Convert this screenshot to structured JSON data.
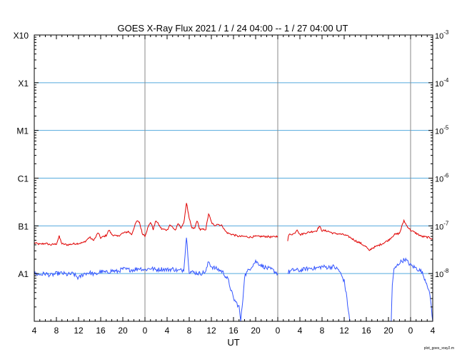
{
  "chart_data": {
    "type": "line",
    "title": "GOES X-Ray Flux   2021 /  1 / 24   04:00 --  1 / 27   04:00   UT",
    "xlabel": "UT",
    "footer": "plot_goes_xray2.m",
    "x_unit": "hours since 2021-01-24 04:00 UT",
    "xlim": [
      0,
      72
    ],
    "ylim": [
      1e-09,
      0.001
    ],
    "y_scale": "log",
    "x_tick_labels": [
      "4",
      "8",
      "12",
      "16",
      "20",
      "0",
      "4",
      "8",
      "12",
      "16",
      "20",
      "0",
      "4",
      "8",
      "12",
      "16",
      "20",
      "0",
      "4"
    ],
    "x_tick_values": [
      0,
      4,
      8,
      12,
      16,
      20,
      24,
      28,
      32,
      36,
      40,
      44,
      48,
      52,
      56,
      60,
      64,
      68,
      72
    ],
    "day_boundaries": [
      20,
      44,
      68
    ],
    "left_axis_labels": [
      {
        "label": "X10",
        "value": 0.001
      },
      {
        "label": "X1",
        "value": 0.0001
      },
      {
        "label": "M1",
        "value": 1e-05
      },
      {
        "label": "C1",
        "value": 1e-06
      },
      {
        "label": "B1",
        "value": 1e-07
      },
      {
        "label": "A1",
        "value": 1e-08
      }
    ],
    "right_axis_labels": [
      {
        "label": "10",
        "exp": "-3",
        "value": 0.001
      },
      {
        "label": "10",
        "exp": "-4",
        "value": 0.0001
      },
      {
        "label": "10",
        "exp": "-5",
        "value": 1e-05
      },
      {
        "label": "10",
        "exp": "-6",
        "value": 1e-06
      },
      {
        "label": "10",
        "exp": "-7",
        "value": 1e-07
      },
      {
        "label": "10",
        "exp": "-8",
        "value": 1e-08
      }
    ],
    "gridlines": [
      0.0001,
      1e-05,
      1e-06,
      1e-07,
      1e-08
    ],
    "colors": {
      "long": "#e00000",
      "short": "#3355ff",
      "grid": "#55aadd",
      "day_line": "#888888"
    },
    "series": [
      {
        "name": "long",
        "segments": [
          [
            [
              0,
              4.4e-08
            ],
            [
              1,
              4.1e-08
            ],
            [
              2,
              4.3e-08
            ],
            [
              3,
              4e-08
            ],
            [
              4,
              4.2e-08
            ],
            [
              4.5,
              6e-08
            ],
            [
              5,
              4.2e-08
            ],
            [
              6,
              4e-08
            ],
            [
              7,
              4.2e-08
            ],
            [
              8,
              4.3e-08
            ],
            [
              9,
              4.5e-08
            ],
            [
              10,
              5.8e-08
            ],
            [
              10.6,
              5e-08
            ],
            [
              11,
              5.5e-08
            ],
            [
              11.5,
              7.2e-08
            ],
            [
              12,
              5.6e-08
            ],
            [
              13,
              6.3e-08
            ],
            [
              13.5,
              8.2e-08
            ],
            [
              14,
              6.6e-08
            ],
            [
              15,
              6e-08
            ],
            [
              16,
              7e-08
            ],
            [
              17,
              7.6e-08
            ],
            [
              17.6,
              6.6e-08
            ],
            [
              18,
              9e-08
            ],
            [
              18.5,
              1.25e-07
            ],
            [
              19,
              1.2e-07
            ],
            [
              19.5,
              7e-08
            ],
            [
              20,
              6.2e-08
            ],
            [
              20.6,
              9.6e-08
            ],
            [
              21,
              1.2e-07
            ],
            [
              21.5,
              8.5e-08
            ],
            [
              22,
              1.3e-07
            ],
            [
              22.5,
              1.05e-07
            ],
            [
              23,
              8.6e-08
            ],
            [
              24,
              8.2e-08
            ],
            [
              24.5,
              1.05e-07
            ],
            [
              25,
              9.3e-08
            ],
            [
              25.5,
              8.1e-08
            ],
            [
              26,
              1.1e-07
            ],
            [
              26.5,
              9.3e-08
            ],
            [
              27,
              1.1e-07
            ],
            [
              27.5,
              3.1e-07
            ],
            [
              28,
              1.4e-07
            ],
            [
              28.5,
              8.9e-08
            ],
            [
              29,
              8.9e-08
            ],
            [
              29.4,
              1.3e-07
            ],
            [
              29.8,
              9.2e-08
            ],
            [
              30,
              8.3e-08
            ],
            [
              31,
              8.5e-08
            ],
            [
              31.5,
              1.8e-07
            ],
            [
              32,
              1.2e-07
            ],
            [
              32.5,
              1e-07
            ],
            [
              33,
              1.1e-07
            ],
            [
              34,
              1e-07
            ],
            [
              34.5,
              7.8e-08
            ],
            [
              35,
              7e-08
            ],
            [
              36,
              6.5e-08
            ],
            [
              37,
              6e-08
            ],
            [
              38,
              6e-08
            ],
            [
              39,
              5.8e-08
            ],
            [
              40,
              6e-08
            ],
            [
              41,
              6e-08
            ],
            [
              42,
              6e-08
            ],
            [
              43,
              5.8e-08
            ],
            [
              44,
              6.1e-08
            ]
          ],
          [
            [
              45.8,
              5e-08
            ],
            [
              46,
              6.5e-08
            ],
            [
              47,
              6.9e-08
            ],
            [
              47.5,
              8.5e-08
            ],
            [
              48,
              6.5e-08
            ],
            [
              49,
              7.1e-08
            ],
            [
              50,
              7.5e-08
            ],
            [
              51,
              7.9e-08
            ],
            [
              51.5,
              9.8e-08
            ],
            [
              52,
              8e-08
            ],
            [
              53,
              7.8e-08
            ],
            [
              54,
              7e-08
            ],
            [
              55,
              6.8e-08
            ],
            [
              56,
              6.5e-08
            ],
            [
              57,
              5.8e-08
            ],
            [
              58,
              4.9e-08
            ],
            [
              59,
              4.3e-08
            ],
            [
              60,
              3.6e-08
            ],
            [
              60.5,
              3e-08
            ],
            [
              61,
              3.4e-08
            ],
            [
              62,
              3.8e-08
            ],
            [
              63,
              4.3e-08
            ],
            [
              64,
              5e-08
            ],
            [
              65,
              6.5e-08
            ],
            [
              66,
              7e-08
            ],
            [
              66.8,
              1.3e-07
            ],
            [
              67.2,
              1.05e-07
            ],
            [
              68,
              8.1e-08
            ],
            [
              69,
              7e-08
            ],
            [
              70,
              6e-08
            ],
            [
              71,
              5.8e-08
            ],
            [
              72,
              5.4e-08
            ]
          ]
        ]
      },
      {
        "name": "short",
        "segments": [
          [
            [
              0,
              1e-08
            ],
            [
              1,
              9.5e-09
            ],
            [
              2,
              1e-08
            ],
            [
              3,
              9.2e-09
            ],
            [
              4,
              1e-08
            ],
            [
              5,
              1.02e-08
            ],
            [
              6,
              9.5e-09
            ],
            [
              7,
              1e-08
            ],
            [
              8,
              8e-09
            ],
            [
              9,
              1e-08
            ],
            [
              10,
              1.05e-08
            ],
            [
              11,
              9.5e-09
            ],
            [
              12,
              1.1e-08
            ],
            [
              13,
              1.05e-08
            ],
            [
              14,
              1.15e-08
            ],
            [
              15,
              1.1e-08
            ],
            [
              16,
              1.25e-08
            ],
            [
              17,
              1.2e-08
            ],
            [
              18,
              1.2e-08
            ],
            [
              19,
              1.3e-08
            ],
            [
              20,
              1.2e-08
            ],
            [
              21,
              1.3e-08
            ],
            [
              22,
              1.2e-08
            ],
            [
              23,
              1.25e-08
            ],
            [
              24,
              1.2e-08
            ],
            [
              25,
              1.25e-08
            ],
            [
              26,
              1.15e-08
            ],
            [
              27,
              1.2e-08
            ],
            [
              27.5,
              6e-08
            ],
            [
              28,
              1.1e-08
            ],
            [
              29,
              1.05e-08
            ],
            [
              30,
              1e-08
            ],
            [
              31,
              1.1e-08
            ],
            [
              31.5,
              1.8e-08
            ],
            [
              32,
              1.4e-08
            ],
            [
              33,
              1.25e-08
            ],
            [
              34,
              1.1e-08
            ],
            [
              35,
              7.5e-09
            ],
            [
              36,
              3e-09
            ],
            [
              37,
              2e-09
            ],
            [
              37.3,
              1e-09
            ],
            [
              37.7,
              3e-09
            ],
            [
              38,
              9e-09
            ],
            [
              39,
              1.3e-08
            ],
            [
              40,
              1.8e-08
            ],
            [
              41,
              1.5e-08
            ],
            [
              42,
              1.3e-08
            ],
            [
              43,
              1.2e-08
            ],
            [
              44,
              1e-08
            ]
          ],
          [
            [
              45.8,
              1e-08
            ],
            [
              46,
              1.1e-08
            ],
            [
              47,
              1.2e-08
            ],
            [
              48,
              1.15e-08
            ],
            [
              49,
              1.25e-08
            ],
            [
              50,
              1.3e-08
            ],
            [
              51,
              1.3e-08
            ],
            [
              52,
              1.4e-08
            ],
            [
              53,
              1.35e-08
            ],
            [
              54,
              1.4e-08
            ],
            [
              55,
              1.2e-08
            ],
            [
              56,
              7e-09
            ],
            [
              56.5,
              3e-09
            ],
            [
              57,
              1e-09
            ]
          ],
          [
            [
              64.5,
              1e-09
            ],
            [
              64.7,
              6e-09
            ],
            [
              65,
              1.2e-08
            ],
            [
              66,
              1.7e-08
            ],
            [
              67,
              2e-08
            ],
            [
              68,
              1.5e-08
            ],
            [
              69,
              1.3e-08
            ],
            [
              70,
              1.1e-08
            ],
            [
              71,
              6e-09
            ],
            [
              71.6,
              3e-09
            ],
            [
              72,
              1e-09
            ]
          ]
        ]
      }
    ]
  }
}
